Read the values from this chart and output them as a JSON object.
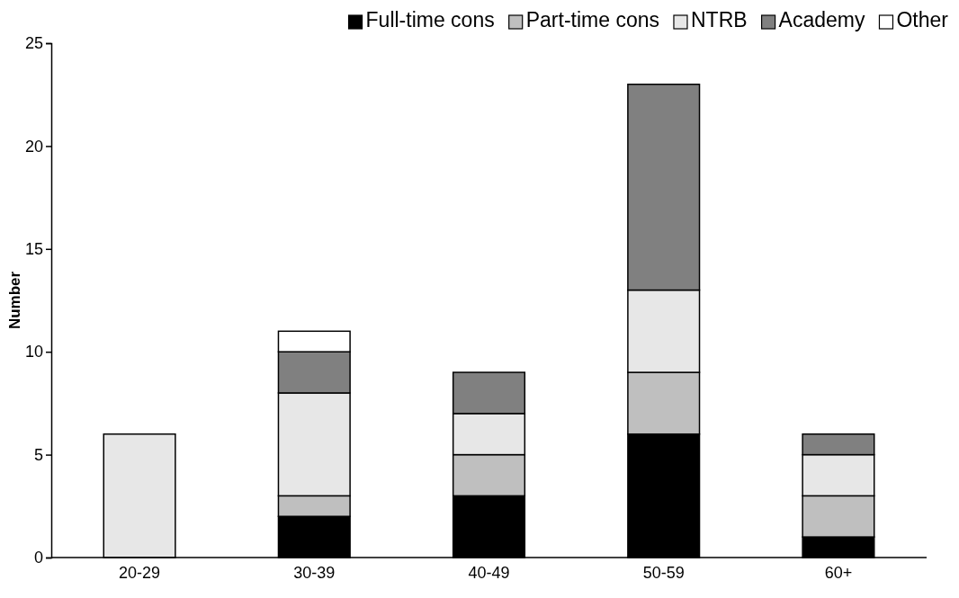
{
  "chart_data": {
    "type": "bar",
    "stacked": true,
    "ylabel": "Number",
    "categories": [
      "20-29",
      "30-39",
      "40-49",
      "50-59",
      "60+"
    ],
    "series": [
      {
        "name": "Full-time cons",
        "color": "#000000",
        "values": [
          0,
          2,
          3,
          6,
          1
        ]
      },
      {
        "name": "Part-time cons",
        "color": "#bfbfbf",
        "values": [
          0,
          1,
          2,
          3,
          2
        ]
      },
      {
        "name": "NTRB",
        "color": "#e7e7e7",
        "values": [
          6,
          5,
          2,
          4,
          2
        ]
      },
      {
        "name": "Academy",
        "color": "#808080",
        "values": [
          0,
          2,
          2,
          10,
          1
        ]
      },
      {
        "name": "Other",
        "color": "#ffffff",
        "values": [
          0,
          1,
          0,
          0,
          0
        ]
      }
    ],
    "ylim": [
      0,
      25
    ],
    "yticks": [
      0,
      5,
      10,
      15,
      20,
      25
    ],
    "grid": false,
    "legend": "top"
  }
}
